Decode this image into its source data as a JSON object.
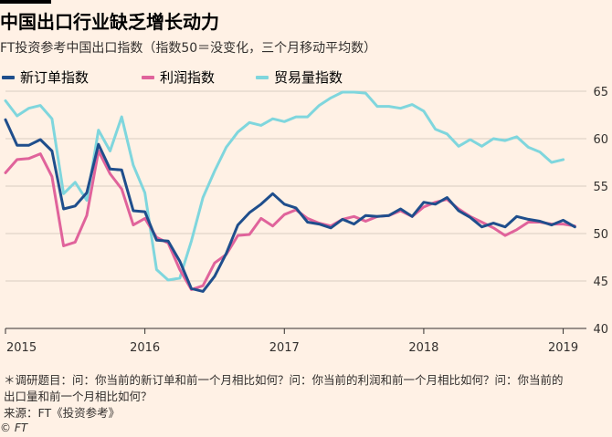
{
  "title": "中国出口行业缺乏增长动力",
  "subtitle": "FT投资参考中国出口指数（指数50＝没变化，三个月移动平均数）",
  "footnote": {
    "line1": "＊调研题目：问：你当前的新订单和前一个月相比如何？问：你当前的利润和前一个月相比如何？问：你当前的",
    "line2": "出口量和前一个月相比如何？",
    "source": "来源：FT《投资参考》"
  },
  "copyright": "© FT",
  "colors": {
    "new_orders": "#1f4e8c",
    "profit": "#e0639b",
    "trade": "#7fd6dd",
    "grid": "#d9cdc1",
    "background": "#fff1e5"
  },
  "chart_data": {
    "type": "line",
    "x_start": "2015-01",
    "x_end": "2019-03",
    "x_tick_labels": [
      {
        "label": "2015",
        "x": "2015-01"
      },
      {
        "label": "2016",
        "x": "2016-01"
      },
      {
        "label": "2017",
        "x": "2017-01"
      },
      {
        "label": "2018",
        "x": "2018-01"
      },
      {
        "label": "2019",
        "x": "2019-01"
      }
    ],
    "ylim": [
      40,
      65
    ],
    "y_ticks": [
      40,
      45,
      50,
      55,
      60,
      65
    ],
    "y_axis_side": "right",
    "grid": true,
    "legend_position": "top-left",
    "series": [
      {
        "name": "新订单指数",
        "color": "#1f4e8c",
        "points": [
          [
            "2015-01",
            62.0
          ],
          [
            "2015-02",
            59.3
          ],
          [
            "2015-03",
            59.3
          ],
          [
            "2015-04",
            59.9
          ],
          [
            "2015-05",
            58.7
          ],
          [
            "2015-06",
            52.6
          ],
          [
            "2015-07",
            52.9
          ],
          [
            "2015-08",
            54.3
          ],
          [
            "2015-09",
            59.4
          ],
          [
            "2015-10",
            56.8
          ],
          [
            "2015-11",
            56.7
          ],
          [
            "2015-12",
            52.4
          ],
          [
            "2016-01",
            52.3
          ],
          [
            "2016-02",
            49.3
          ],
          [
            "2016-03",
            49.2
          ],
          [
            "2016-04",
            47.1
          ],
          [
            "2016-05",
            44.2
          ],
          [
            "2016-06",
            43.9
          ],
          [
            "2016-07",
            45.5
          ],
          [
            "2016-08",
            47.9
          ],
          [
            "2016-09",
            50.9
          ],
          [
            "2016-10",
            52.2
          ],
          [
            "2016-11",
            53.1
          ],
          [
            "2016-12",
            54.2
          ],
          [
            "2017-01",
            53.1
          ],
          [
            "2017-02",
            52.7
          ],
          [
            "2017-03",
            51.2
          ],
          [
            "2017-04",
            51.0
          ],
          [
            "2017-05",
            50.6
          ],
          [
            "2017-06",
            51.5
          ],
          [
            "2017-07",
            51.0
          ],
          [
            "2017-08",
            51.9
          ],
          [
            "2017-09",
            51.8
          ],
          [
            "2017-10",
            51.9
          ],
          [
            "2017-11",
            52.6
          ],
          [
            "2017-12",
            51.8
          ],
          [
            "2018-01",
            53.3
          ],
          [
            "2018-02",
            53.1
          ],
          [
            "2018-03",
            53.8
          ],
          [
            "2018-04",
            52.4
          ],
          [
            "2018-05",
            51.7
          ],
          [
            "2018-06",
            50.7
          ],
          [
            "2018-07",
            51.1
          ],
          [
            "2018-08",
            50.7
          ],
          [
            "2018-09",
            51.8
          ],
          [
            "2018-10",
            51.5
          ],
          [
            "2018-11",
            51.3
          ],
          [
            "2018-12",
            50.9
          ],
          [
            "2019-01",
            51.4
          ],
          [
            "2019-02",
            50.7
          ]
        ]
      },
      {
        "name": "利润指数",
        "color": "#e0639b",
        "points": [
          [
            "2015-01",
            56.4
          ],
          [
            "2015-02",
            57.8
          ],
          [
            "2015-03",
            57.9
          ],
          [
            "2015-04",
            58.4
          ],
          [
            "2015-05",
            56.0
          ],
          [
            "2015-06",
            48.7
          ],
          [
            "2015-07",
            49.1
          ],
          [
            "2015-08",
            51.9
          ],
          [
            "2015-09",
            58.7
          ],
          [
            "2015-10",
            56.3
          ],
          [
            "2015-11",
            54.7
          ],
          [
            "2015-12",
            50.9
          ],
          [
            "2016-01",
            51.6
          ],
          [
            "2016-02",
            49.6
          ],
          [
            "2016-03",
            49.0
          ],
          [
            "2016-04",
            46.2
          ],
          [
            "2016-05",
            44.1
          ],
          [
            "2016-06",
            44.5
          ],
          [
            "2016-07",
            46.9
          ],
          [
            "2016-08",
            47.8
          ],
          [
            "2016-09",
            49.8
          ],
          [
            "2016-10",
            49.9
          ],
          [
            "2016-11",
            51.6
          ],
          [
            "2016-12",
            50.8
          ],
          [
            "2017-01",
            52.0
          ],
          [
            "2017-02",
            52.5
          ],
          [
            "2017-03",
            51.6
          ],
          [
            "2017-04",
            51.1
          ],
          [
            "2017-05",
            50.8
          ],
          [
            "2017-06",
            51.5
          ],
          [
            "2017-07",
            51.8
          ],
          [
            "2017-08",
            51.3
          ],
          [
            "2017-09",
            51.8
          ],
          [
            "2017-10",
            51.9
          ],
          [
            "2017-11",
            52.4
          ],
          [
            "2017-12",
            51.8
          ],
          [
            "2018-01",
            52.8
          ],
          [
            "2018-02",
            53.3
          ],
          [
            "2018-03",
            53.6
          ],
          [
            "2018-04",
            52.6
          ],
          [
            "2018-05",
            51.8
          ],
          [
            "2018-06",
            51.2
          ],
          [
            "2018-07",
            50.6
          ],
          [
            "2018-08",
            49.8
          ],
          [
            "2018-09",
            50.4
          ],
          [
            "2018-10",
            51.2
          ],
          [
            "2018-11",
            51.2
          ],
          [
            "2018-12",
            51.0
          ],
          [
            "2019-01",
            51.0
          ],
          [
            "2019-02",
            50.8
          ]
        ]
      },
      {
        "name": "贸易量指数",
        "color": "#7fd6dd",
        "points": [
          [
            "2015-01",
            64.0
          ],
          [
            "2015-02",
            62.4
          ],
          [
            "2015-03",
            63.2
          ],
          [
            "2015-04",
            63.5
          ],
          [
            "2015-05",
            62.1
          ],
          [
            "2015-06",
            54.2
          ],
          [
            "2015-07",
            55.4
          ],
          [
            "2015-08",
            53.5
          ],
          [
            "2015-09",
            60.9
          ],
          [
            "2015-10",
            58.7
          ],
          [
            "2015-11",
            62.3
          ],
          [
            "2015-12",
            57.2
          ],
          [
            "2016-01",
            54.3
          ],
          [
            "2016-02",
            46.2
          ],
          [
            "2016-03",
            45.1
          ],
          [
            "2016-04",
            45.3
          ],
          [
            "2016-05",
            49.2
          ],
          [
            "2016-06",
            53.8
          ],
          [
            "2016-07",
            56.6
          ],
          [
            "2016-08",
            59.1
          ],
          [
            "2016-09",
            60.7
          ],
          [
            "2016-10",
            61.7
          ],
          [
            "2016-11",
            61.4
          ],
          [
            "2016-12",
            62.1
          ],
          [
            "2017-01",
            61.8
          ],
          [
            "2017-02",
            62.3
          ],
          [
            "2017-03",
            62.3
          ],
          [
            "2017-04",
            63.5
          ],
          [
            "2017-05",
            64.3
          ],
          [
            "2017-06",
            64.9
          ],
          [
            "2017-07",
            64.9
          ],
          [
            "2017-08",
            64.8
          ],
          [
            "2017-09",
            63.4
          ],
          [
            "2017-10",
            63.4
          ],
          [
            "2017-11",
            63.2
          ],
          [
            "2017-12",
            63.6
          ],
          [
            "2018-01",
            62.9
          ],
          [
            "2018-02",
            61.0
          ],
          [
            "2018-03",
            60.5
          ],
          [
            "2018-04",
            59.2
          ],
          [
            "2018-05",
            59.9
          ],
          [
            "2018-06",
            59.2
          ],
          [
            "2018-07",
            60.0
          ],
          [
            "2018-08",
            59.8
          ],
          [
            "2018-09",
            60.2
          ],
          [
            "2018-10",
            59.1
          ],
          [
            "2018-11",
            58.6
          ],
          [
            "2018-12",
            57.5
          ],
          [
            "2019-01",
            57.8
          ]
        ]
      }
    ]
  }
}
